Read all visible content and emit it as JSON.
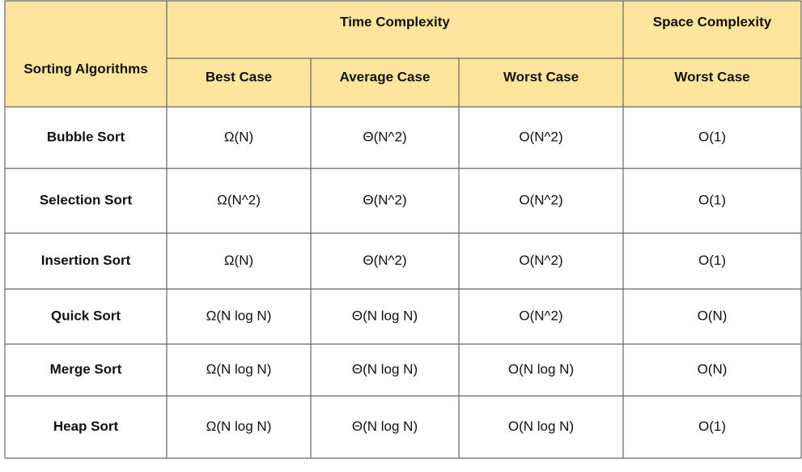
{
  "header": {
    "first_column": "Sorting Algorithms",
    "groups": [
      "Time Complexity",
      "Space Complexity"
    ],
    "sub_headers": [
      "Best Case",
      "Average Case",
      "Worst Case",
      "Worst Case"
    ]
  },
  "table": {
    "rows": [
      [
        "Bubble Sort",
        "Ω(N)",
        "Θ(N^2)",
        "O(N^2)",
        "O(1)"
      ],
      [
        "Selection Sort",
        "Ω(N^2)",
        "Θ(N^2)",
        "O(N^2)",
        "O(1)"
      ],
      [
        "Insertion Sort",
        "Ω(N)",
        "Θ(N^2)",
        "O(N^2)",
        "O(1)"
      ],
      [
        "Quick Sort",
        "Ω(N log N)",
        "Θ(N log N)",
        "O(N^2)",
        "O(N)"
      ],
      [
        "Merge Sort",
        "Ω(N log N)",
        "Θ(N log N)",
        "O(N log N)",
        "O(N)"
      ],
      [
        "Heap Sort",
        "Ω(N log N)",
        "Θ(N log N)",
        "O(N log N)",
        "O(1)"
      ]
    ]
  }
}
